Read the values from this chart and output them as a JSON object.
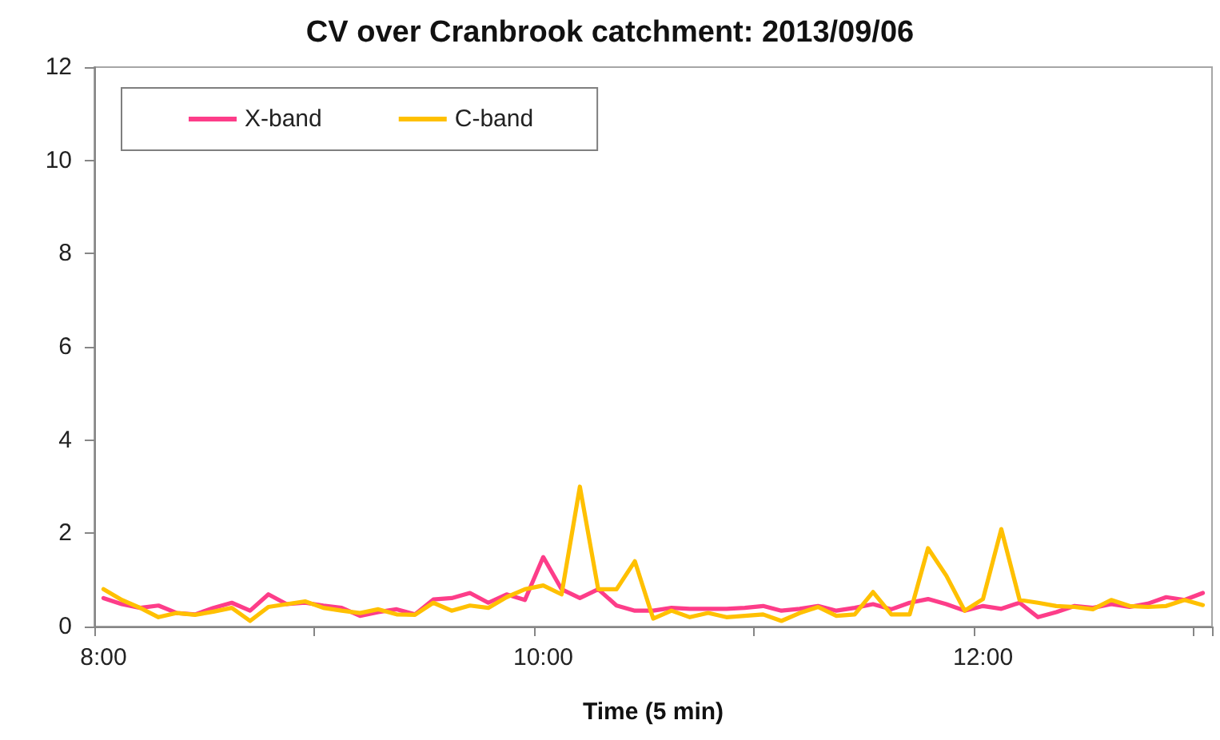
{
  "chart_data": {
    "type": "line",
    "title": "CV over Cranbrook catchment: 2013/09/06",
    "xlabel": "Time (5 min)",
    "categories": [
      "8:00",
      null,
      null,
      null,
      null,
      null,
      null,
      null,
      null,
      null,
      null,
      null,
      null,
      null,
      null,
      null,
      null,
      null,
      null,
      null,
      null,
      null,
      null,
      null,
      "10:00",
      null,
      null,
      null,
      null,
      null,
      null,
      null,
      null,
      null,
      null,
      null,
      null,
      null,
      null,
      null,
      null,
      null,
      null,
      null,
      null,
      null,
      null,
      null,
      "12:00",
      null,
      null,
      null,
      null,
      null,
      null,
      null,
      null,
      null,
      null,
      null,
      null
    ],
    "series": [
      {
        "name": "X-band",
        "color": "#fd3d89",
        "values": [
          0.61,
          0.48,
          0.4,
          0.45,
          0.29,
          0.26,
          0.4,
          0.51,
          0.34,
          0.69,
          0.48,
          0.51,
          0.45,
          0.4,
          0.23,
          0.31,
          0.37,
          0.26,
          0.58,
          0.61,
          0.72,
          0.51,
          0.69,
          0.57,
          1.49,
          0.8,
          0.61,
          0.8,
          0.45,
          0.34,
          0.34,
          0.4,
          0.38,
          0.38,
          0.38,
          0.4,
          0.44,
          0.34,
          0.38,
          0.44,
          0.34,
          0.4,
          0.48,
          0.37,
          0.51,
          0.59,
          0.48,
          0.34,
          0.44,
          0.38,
          0.51,
          0.2,
          0.31,
          0.44,
          0.4,
          0.48,
          0.42,
          0.49,
          0.63,
          0.57,
          0.72
        ]
      },
      {
        "name": "C-band",
        "color": "#ffc000",
        "values": [
          0.8,
          0.57,
          0.4,
          0.2,
          0.29,
          0.25,
          0.32,
          0.4,
          0.12,
          0.42,
          0.48,
          0.54,
          0.4,
          0.34,
          0.29,
          0.37,
          0.26,
          0.25,
          0.51,
          0.34,
          0.45,
          0.4,
          0.63,
          0.8,
          0.88,
          0.69,
          3.0,
          0.8,
          0.8,
          1.4,
          0.17,
          0.34,
          0.2,
          0.29,
          0.2,
          0.23,
          0.26,
          0.12,
          0.29,
          0.42,
          0.23,
          0.26,
          0.74,
          0.26,
          0.26,
          1.68,
          1.09,
          0.34,
          0.59,
          2.09,
          0.57,
          0.51,
          0.44,
          0.42,
          0.37,
          0.57,
          0.44,
          0.42,
          0.44,
          0.57,
          0.46
        ]
      }
    ],
    "ylim": [
      0,
      12
    ],
    "yticks": [
      0,
      2,
      4,
      6,
      8,
      10,
      12
    ],
    "grid": false,
    "legend": "top left",
    "marker": "none",
    "line_style": "solid"
  }
}
